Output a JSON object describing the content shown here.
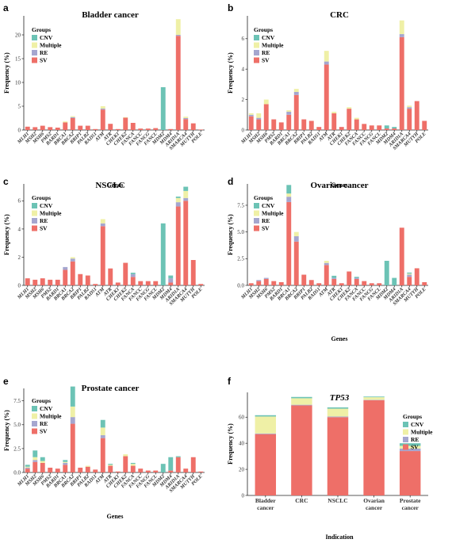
{
  "colors": {
    "CNV": "#6cc3b5",
    "Multiple": "#eff0a6",
    "RE": "#a5a6cf",
    "SV": "#ee6f68"
  },
  "legend_title": "Groups",
  "legend_labels": [
    "CNV",
    "Multiple",
    "RE",
    "SV"
  ],
  "chart_data": [
    {
      "panel": "a",
      "type": "bar",
      "stacked": true,
      "title": "Bladder cancer",
      "xlabel": "Genes",
      "ylabel": "Frequency (%)",
      "ylim": [
        0,
        24
      ],
      "yticks": [
        0,
        5,
        10,
        15,
        20
      ],
      "categories": [
        "MLH1",
        "MSH2",
        "MSH6",
        "PMS2",
        "BARD1",
        "BRCA1",
        "BRCA2",
        "BRIP1",
        "PALB2",
        "RAD51",
        "ATM",
        "ATR",
        "CHEK1",
        "CHEK2",
        "FANCA",
        "FANCC",
        "FANCG",
        "FANCL",
        "MDM2",
        "MDM4",
        "ARID1A",
        "SMARCA4",
        "MUTYH",
        "POLE"
      ],
      "series": [
        {
          "name": "SV",
          "values": [
            0.7,
            0.6,
            0.9,
            0.6,
            0.5,
            1.6,
            2.5,
            0.9,
            0.9,
            0.2,
            4.3,
            1.3,
            0.2,
            2.6,
            1.5,
            0.3,
            0.3,
            0.4,
            0,
            0.2,
            19.8,
            2.3,
            1.4,
            0.1
          ]
        },
        {
          "name": "RE",
          "values": [
            0,
            0,
            0,
            0,
            0,
            0,
            0.2,
            0,
            0,
            0,
            0.2,
            0,
            0,
            0,
            0,
            0,
            0,
            0,
            0,
            0,
            0.2,
            0.2,
            0,
            0
          ]
        },
        {
          "name": "Multiple",
          "values": [
            0,
            0,
            0,
            0,
            0,
            0.2,
            0.2,
            0,
            0,
            0,
            0.5,
            0,
            0,
            0.1,
            0,
            0,
            0,
            0,
            0,
            0,
            3.3,
            0.3,
            0,
            0
          ]
        },
        {
          "name": "CNV",
          "values": [
            0,
            0,
            0,
            0,
            0,
            0,
            0,
            0,
            0,
            0,
            0,
            0,
            0,
            0,
            0,
            0,
            0,
            0,
            9.0,
            0,
            0,
            0,
            0,
            0
          ]
        }
      ]
    },
    {
      "panel": "b",
      "type": "bar",
      "stacked": true,
      "title": "CRC",
      "xlabel": "Genes",
      "ylabel": "Frequency (%)",
      "ylim": [
        0,
        7.5
      ],
      "yticks": [
        0,
        2,
        4,
        6
      ],
      "categories": [
        "MLH1",
        "MSH2",
        "MSH6",
        "PMS2",
        "BARD1",
        "BRCA1",
        "BRCA2",
        "BRIP1",
        "PALB2",
        "RAD51",
        "ATM",
        "ATR",
        "CHEK1",
        "CHEK2",
        "FANCA",
        "FANCC",
        "FANCG",
        "FANCL",
        "MDM2",
        "MDM4",
        "ARID1A",
        "SMARCA4",
        "MUTYH",
        "POLE"
      ],
      "series": [
        {
          "name": "SV",
          "values": [
            0.9,
            0.7,
            1.7,
            0.7,
            0.5,
            1.0,
            2.3,
            0.7,
            0.6,
            0.2,
            4.3,
            1.1,
            0.2,
            1.4,
            0.7,
            0.4,
            0.3,
            0.3,
            0.1,
            0.1,
            6.1,
            1.4,
            1.9,
            0.6
          ]
        },
        {
          "name": "RE",
          "values": [
            0.1,
            0.1,
            0,
            0,
            0,
            0.2,
            0.2,
            0,
            0,
            0,
            0.2,
            0,
            0,
            0,
            0,
            0,
            0,
            0,
            0,
            0,
            0.2,
            0.1,
            0,
            0
          ]
        },
        {
          "name": "Multiple",
          "values": [
            0.1,
            0.3,
            0.3,
            0,
            0,
            0.1,
            0.2,
            0,
            0,
            0,
            0.7,
            0.1,
            0,
            0.1,
            0.1,
            0,
            0,
            0,
            0,
            0,
            0.9,
            0.1,
            0,
            0
          ]
        },
        {
          "name": "CNV",
          "values": [
            0,
            0,
            0,
            0,
            0,
            0,
            0,
            0,
            0,
            0,
            0,
            0,
            0,
            0,
            0,
            0,
            0,
            0,
            0.2,
            0.1,
            0,
            0,
            0,
            0
          ]
        }
      ]
    },
    {
      "panel": "c",
      "type": "bar",
      "stacked": true,
      "title": "NSCLC",
      "xlabel": "",
      "ylabel": "Frequency (%)",
      "ylim": [
        0,
        7.2
      ],
      "yticks": [
        0,
        2,
        4,
        6
      ],
      "categories": [
        "MLH1",
        "MSH2",
        "MSH6",
        "PMS2",
        "BARD1",
        "BRCA1",
        "BRCA2",
        "BRIP1",
        "PALB2",
        "RAD51",
        "ATM",
        "ATR",
        "CHEK1",
        "CHEK2",
        "FANCA",
        "FANCC",
        "FANCG",
        "FANCL",
        "MDM2",
        "MDM4",
        "ARID1A",
        "SMARCA4",
        "MUTYH",
        "POLE"
      ],
      "series": [
        {
          "name": "SV",
          "values": [
            0.5,
            0.4,
            0.5,
            0.4,
            0.4,
            1.1,
            1.7,
            0.8,
            0.7,
            0.1,
            4.2,
            1.2,
            0.2,
            1.6,
            0.6,
            0.3,
            0.3,
            0.3,
            0,
            0.2,
            5.6,
            6.0,
            1.8,
            0.1
          ]
        },
        {
          "name": "RE",
          "values": [
            0,
            0,
            0,
            0,
            0,
            0.2,
            0.2,
            0,
            0,
            0,
            0.2,
            0,
            0,
            0,
            0.2,
            0,
            0,
            0,
            0,
            0.3,
            0.3,
            0.2,
            0,
            0
          ]
        },
        {
          "name": "Multiple",
          "values": [
            0,
            0,
            0,
            0,
            0,
            0,
            0.1,
            0,
            0,
            0,
            0.3,
            0,
            0,
            0,
            0,
            0,
            0,
            0,
            0,
            0,
            0.3,
            0.5,
            0,
            0
          ]
        },
        {
          "name": "CNV",
          "values": [
            0,
            0,
            0,
            0,
            0,
            0,
            0,
            0,
            0,
            0,
            0,
            0,
            0,
            0,
            0.1,
            0,
            0,
            0,
            4.4,
            0.2,
            0.1,
            0.3,
            0,
            0
          ]
        }
      ]
    },
    {
      "panel": "d",
      "type": "bar",
      "stacked": true,
      "title": "Ovarian cancer",
      "xlabel": "Genes",
      "ylabel": "Frequency (%)",
      "ylim": [
        0,
        9.5
      ],
      "yticks": [
        0.0,
        2.5,
        5.0,
        7.5
      ],
      "categories": [
        "MLH1",
        "MSH2",
        "MSH6",
        "PMS2",
        "BARD1",
        "BRCA1",
        "BRCA2",
        "BRIP1",
        "PALB2",
        "RAD51",
        "ATM",
        "ATR",
        "CHEK1",
        "CHEK2",
        "FANCA",
        "FANCC",
        "FANCG",
        "FANCL",
        "MDM2",
        "MDM4",
        "ARID1A",
        "SMARCA4",
        "MUTYH",
        "POLE"
      ],
      "series": [
        {
          "name": "SV",
          "values": [
            0.2,
            0.4,
            0.6,
            0.4,
            0.3,
            7.8,
            4.1,
            1.0,
            0.5,
            0.2,
            1.9,
            0.6,
            0.2,
            1.3,
            0.6,
            0.4,
            0.2,
            0.2,
            0,
            0,
            5.4,
            0.8,
            1.6,
            0.3
          ]
        },
        {
          "name": "RE",
          "values": [
            0,
            0.1,
            0.1,
            0,
            0,
            0.5,
            0.5,
            0,
            0,
            0,
            0.2,
            0.1,
            0,
            0,
            0.1,
            0,
            0,
            0,
            0,
            0,
            0,
            0.2,
            0,
            0
          ]
        },
        {
          "name": "Multiple",
          "values": [
            0,
            0,
            0,
            0,
            0,
            0.3,
            0.4,
            0,
            0,
            0,
            0.2,
            0,
            0,
            0,
            0,
            0,
            0,
            0,
            0,
            0,
            0,
            0.1,
            0,
            0
          ]
        },
        {
          "name": "CNV",
          "values": [
            0,
            0,
            0,
            0,
            0,
            0.8,
            0,
            0,
            0,
            0,
            0,
            0.2,
            0,
            0,
            0.1,
            0,
            0,
            0,
            2.3,
            0.7,
            0,
            0.1,
            0,
            0
          ]
        }
      ]
    },
    {
      "panel": "e",
      "type": "bar",
      "stacked": true,
      "title": "Prostate cancer",
      "xlabel": "Genes",
      "ylabel": "Frequency (%)",
      "ylim": [
        0,
        8.8
      ],
      "yticks": [
        0.0,
        2.5,
        5.0,
        7.5
      ],
      "categories": [
        "MLH1",
        "MSH2",
        "MSH6",
        "PMS2",
        "BARD1",
        "BRCA1",
        "BRCA2",
        "BRIP1",
        "PALB2",
        "RAD51",
        "ATM",
        "ATR",
        "CHEK1",
        "CHEK2",
        "FANCA",
        "FANCC",
        "FANCG",
        "FANCL",
        "MDM2",
        "MDM4",
        "ARID1A",
        "SMARCA4",
        "MUTYH",
        "POLE"
      ],
      "series": [
        {
          "name": "SV",
          "values": [
            0.4,
            1.1,
            1.0,
            0.5,
            0.4,
            0.8,
            5.1,
            0.5,
            0.6,
            0.3,
            3.6,
            0.7,
            0.1,
            1.7,
            0.7,
            0.4,
            0.2,
            0.2,
            0,
            0.2,
            1.6,
            0.4,
            1.6,
            0.1
          ]
        },
        {
          "name": "RE",
          "values": [
            0.1,
            0.2,
            0,
            0,
            0,
            0.2,
            0.7,
            0,
            0,
            0,
            0.3,
            0,
            0,
            0,
            0,
            0,
            0,
            0,
            0,
            0,
            0,
            0,
            0,
            0
          ]
        },
        {
          "name": "Multiple",
          "values": [
            0.1,
            0.3,
            0.2,
            0,
            0,
            0.1,
            1.1,
            0,
            0.1,
            0,
            0.8,
            0.1,
            0,
            0.2,
            0.2,
            0,
            0,
            0,
            0,
            0,
            0,
            0,
            0,
            0
          ]
        },
        {
          "name": "CNV",
          "values": [
            0.2,
            0.7,
            0.4,
            0,
            0,
            0.2,
            2.1,
            0,
            0,
            0,
            0.8,
            0.1,
            0,
            0,
            0.1,
            0,
            0,
            0,
            0.9,
            1.4,
            0.1,
            0,
            0,
            0
          ]
        }
      ]
    },
    {
      "panel": "f",
      "type": "bar",
      "stacked": true,
      "title": "TP53",
      "xlabel": "Indication",
      "ylabel": "Frequency (%)",
      "ylim": [
        0,
        79
      ],
      "yticks": [
        0,
        20,
        40,
        60
      ],
      "categories": [
        "Bladder\ncancer",
        "CRC",
        "NSCLC",
        "Ovarian\ncancer",
        "Prostate\ncancer"
      ],
      "series": [
        {
          "name": "SV",
          "values": [
            47,
            69,
            60,
            73,
            34
          ]
        },
        {
          "name": "RE",
          "values": [
            0.5,
            0.5,
            0.5,
            0.3,
            2
          ]
        },
        {
          "name": "Multiple",
          "values": [
            13,
            5,
            6,
            2,
            2
          ]
        },
        {
          "name": "CNV",
          "values": [
            1,
            1,
            1,
            0.5,
            2
          ]
        }
      ]
    }
  ]
}
